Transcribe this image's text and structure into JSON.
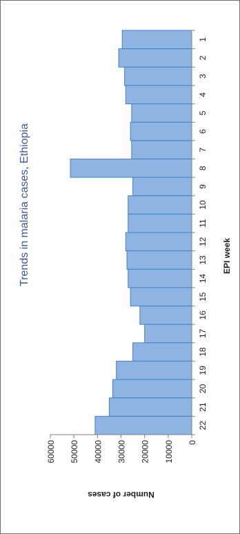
{
  "chart_data": {
    "type": "bar",
    "orientation": "rotated-90-ccw",
    "title": "Trends in malaria cases, Ethiopia",
    "xlabel": "EPI week",
    "ylabel": "Number of cases",
    "ylim": [
      0,
      60000
    ],
    "yticks": [
      "0",
      "10000",
      "20000",
      "30000",
      "40000",
      "50000",
      "60000"
    ],
    "categories": [
      "1",
      "2",
      "3",
      "4",
      "5",
      "6",
      "7",
      "8",
      "9",
      "10",
      "11",
      "12",
      "13",
      "14",
      "15",
      "16",
      "17",
      "18",
      "19",
      "20",
      "21",
      "22"
    ],
    "values": [
      29500,
      31000,
      28500,
      28000,
      25500,
      26000,
      25500,
      51500,
      25000,
      27000,
      27000,
      28000,
      27500,
      27000,
      26000,
      22000,
      20000,
      25000,
      32000,
      33500,
      35000,
      41000
    ],
    "grid": false,
    "legend": "none"
  },
  "colors": {
    "bar_fill": "#8eb4e3",
    "bar_stroke": "#4a7ebb",
    "title": "#3b57a3",
    "axis": "#808080",
    "text": "#1f1f1f"
  }
}
